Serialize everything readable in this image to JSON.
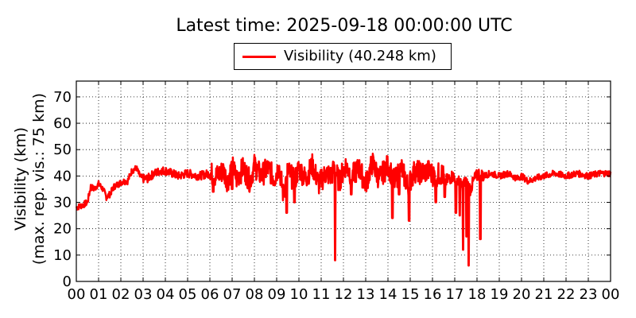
{
  "chart_data": {
    "type": "line",
    "title": "Latest time: 2025-09-18 00:00:00 UTC",
    "ylabel_line1": "Visibility (km)",
    "ylabel_line2": "(max. rep. vis.: 75 km)",
    "xlabel": "",
    "xlim": [
      0,
      24
    ],
    "ylim": [
      0,
      76
    ],
    "grid": true,
    "legend_position": "top-center",
    "x_ticks": [
      "00",
      "01",
      "02",
      "03",
      "04",
      "05",
      "06",
      "07",
      "08",
      "09",
      "10",
      "11",
      "12",
      "13",
      "14",
      "15",
      "16",
      "17",
      "18",
      "19",
      "20",
      "21",
      "22",
      "23",
      "00"
    ],
    "y_ticks": [
      0,
      10,
      20,
      30,
      40,
      50,
      60,
      70
    ],
    "series": [
      {
        "name": "Visibility (40.248 km)",
        "color": "#ff0000",
        "x": [
          0.0,
          0.3,
          0.5,
          0.65,
          0.8,
          1.0,
          1.2,
          1.35,
          1.5,
          1.7,
          1.9,
          2.1,
          2.3,
          2.5,
          2.7,
          2.85,
          3.0,
          3.2,
          3.5,
          3.8,
          4.0,
          4.3,
          4.6,
          5.0,
          5.5,
          6.0,
          6.3,
          6.6,
          6.8,
          7.0,
          7.2,
          7.5,
          7.8,
          8.0,
          8.3,
          8.6,
          8.9,
          9.1,
          9.3,
          9.5,
          9.8,
          10.0,
          10.3,
          10.6,
          10.9,
          11.2,
          11.45,
          11.6,
          11.8,
          12.1,
          12.4,
          12.7,
          13.0,
          13.3,
          13.6,
          14.0,
          14.3,
          14.6,
          14.9,
          15.2,
          15.5,
          15.8,
          16.1,
          16.4,
          16.6,
          16.9,
          17.1,
          17.3,
          17.5,
          17.7,
          17.9,
          18.1,
          18.3,
          18.6,
          19.0,
          19.4,
          19.8,
          20.0,
          20.3,
          20.6,
          21.0,
          21.5,
          22.0,
          22.5,
          23.0,
          23.5,
          24.0
        ],
        "y": [
          28,
          29,
          30,
          36,
          35,
          37,
          35,
          32,
          33,
          36,
          37,
          38,
          38,
          42,
          43,
          40,
          39,
          39,
          41,
          42,
          42,
          41,
          40,
          41,
          40,
          41,
          40,
          42,
          38,
          44,
          39,
          43,
          38,
          44,
          40,
          43,
          39,
          44,
          33,
          42,
          38,
          43,
          39,
          44,
          37,
          41,
          40,
          43,
          38,
          44,
          40,
          43,
          37,
          45,
          39,
          44,
          38,
          43,
          36,
          42,
          41,
          42,
          40,
          41,
          38,
          40,
          39,
          36,
          38,
          35,
          39,
          41,
          40,
          41,
          40,
          41,
          39,
          40,
          38,
          39,
          40,
          41,
          40,
          41,
          40,
          41,
          41
        ],
        "spikes": [
          {
            "x": 6.15,
            "y": 34
          },
          {
            "x": 7.0,
            "y": 35
          },
          {
            "x": 9.45,
            "y": 26
          },
          {
            "x": 9.8,
            "y": 30
          },
          {
            "x": 11.62,
            "y": 8
          },
          {
            "x": 12.35,
            "y": 33
          },
          {
            "x": 14.2,
            "y": 24
          },
          {
            "x": 14.5,
            "y": 33
          },
          {
            "x": 14.95,
            "y": 23
          },
          {
            "x": 16.15,
            "y": 30
          },
          {
            "x": 16.55,
            "y": 32
          },
          {
            "x": 17.05,
            "y": 26
          },
          {
            "x": 17.22,
            "y": 25
          },
          {
            "x": 17.38,
            "y": 12
          },
          {
            "x": 17.52,
            "y": 17
          },
          {
            "x": 17.62,
            "y": 6
          },
          {
            "x": 18.15,
            "y": 16
          }
        ]
      }
    ]
  }
}
